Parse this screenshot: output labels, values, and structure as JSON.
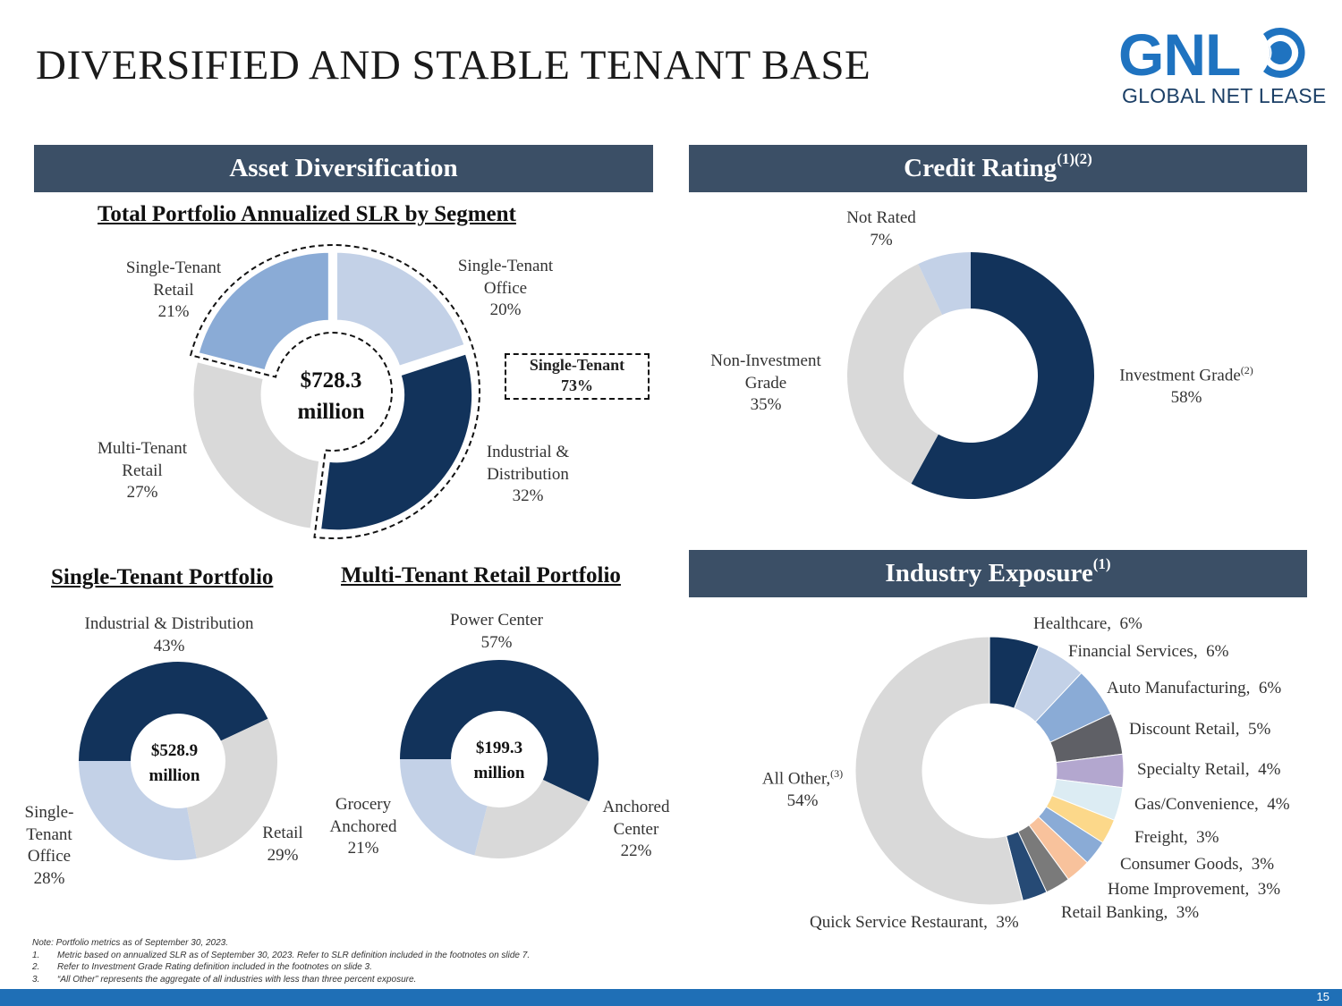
{
  "title": "DIVERSIFIED AND STABLE TENANT BASE",
  "logo": {
    "main": "GNL",
    "sub": "GLOBAL NET LEASE"
  },
  "banners": {
    "asset": "Asset Diversification",
    "credit": "Credit Rating",
    "credit_sup": "(1)(2)",
    "industry": "Industry Exposure",
    "industry_sup": "(1)"
  },
  "subheads": {
    "total": "Total Portfolio Annualized SLR by Segment",
    "single": "Single-Tenant Portfolio",
    "multi": "Multi-Tenant Retail Portfolio"
  },
  "colors": {
    "navy": "#12335b",
    "light_blue": "#c3d1e7",
    "mid_blue": "#8aabd6",
    "gray": "#d9d9d9",
    "banner": "#3b4f66",
    "accent": "#1f73c0"
  },
  "chart_data": [
    {
      "id": "total",
      "type": "pie",
      "title": "Total Portfolio Annualized SLR by Segment",
      "center": [
        "$728.3",
        "million"
      ],
      "callout": [
        "Single-Tenant",
        "73%"
      ],
      "slices": [
        {
          "label": [
            "Single-Tenant",
            "Office"
          ],
          "pct": 20,
          "pct_label": "20%",
          "color": "#c3d1e7"
        },
        {
          "label": [
            "Industrial &",
            "Distribution"
          ],
          "pct": 32,
          "pct_label": "32%",
          "color": "#12335b"
        },
        {
          "label": [
            "Multi-Tenant",
            "Retail"
          ],
          "pct": 27,
          "pct_label": "27%",
          "color": "#d9d9d9"
        },
        {
          "label": [
            "Single-Tenant",
            "Retail"
          ],
          "pct": 21,
          "pct_label": "21%",
          "color": "#8aabd6"
        }
      ]
    },
    {
      "id": "credit",
      "type": "pie",
      "title": "Credit Rating",
      "slices": [
        {
          "label": [
            "Investment Grade"
          ],
          "sup": "(2)",
          "pct": 58,
          "pct_label": "58%",
          "color": "#12335b"
        },
        {
          "label": [
            "Non-Investment",
            "Grade"
          ],
          "pct": 35,
          "pct_label": "35%",
          "color": "#d9d9d9"
        },
        {
          "label": [
            "Not Rated"
          ],
          "pct": 7,
          "pct_label": "7%",
          "color": "#c3d1e7"
        }
      ]
    },
    {
      "id": "single",
      "type": "pie",
      "title": "Single-Tenant Portfolio",
      "center": [
        "$528.9",
        "million"
      ],
      "slices": [
        {
          "label": [
            "Industrial & Distribution"
          ],
          "pct": 43,
          "pct_label": "43%",
          "color": "#12335b"
        },
        {
          "label": [
            "Retail"
          ],
          "pct": 29,
          "pct_label": "29%",
          "color": "#d9d9d9"
        },
        {
          "label": [
            "Single-",
            "Tenant",
            "Office"
          ],
          "pct": 28,
          "pct_label": "28%",
          "color": "#c3d1e7"
        }
      ]
    },
    {
      "id": "multi",
      "type": "pie",
      "title": "Multi-Tenant Retail Portfolio",
      "center": [
        "$199.3",
        "million"
      ],
      "slices": [
        {
          "label": [
            "Power Center"
          ],
          "pct": 57,
          "pct_label": "57%",
          "color": "#12335b"
        },
        {
          "label": [
            "Anchored",
            "Center"
          ],
          "pct": 22,
          "pct_label": "22%",
          "color": "#d9d9d9"
        },
        {
          "label": [
            "Grocery",
            "Anchored"
          ],
          "pct": 21,
          "pct_label": "21%",
          "color": "#c3d1e7"
        }
      ]
    },
    {
      "id": "industry",
      "type": "pie",
      "title": "Industry Exposure",
      "slices": [
        {
          "label": "Healthcare,",
          "pct": 6,
          "pct_label": "6%",
          "color": "#12335b"
        },
        {
          "label": "Financial Services,",
          "pct": 6,
          "pct_label": "6%",
          "color": "#c3d1e7"
        },
        {
          "label": "Auto Manufacturing,",
          "pct": 6,
          "pct_label": "6%",
          "color": "#8aabd6"
        },
        {
          "label": "Discount Retail,",
          "pct": 5,
          "pct_label": "5%",
          "color": "#5f6066"
        },
        {
          "label": "Specialty Retail,",
          "pct": 4,
          "pct_label": "4%",
          "color": "#b3a7cf"
        },
        {
          "label": "Gas/Convenience,",
          "pct": 4,
          "pct_label": "4%",
          "color": "#dcecf3"
        },
        {
          "label": "Freight,",
          "pct": 3,
          "pct_label": "3%",
          "color": "#fcd88a"
        },
        {
          "label": "Consumer Goods,",
          "pct": 3,
          "pct_label": "3%",
          "color": "#8aabd6"
        },
        {
          "label": "Home Improvement,",
          "pct": 3,
          "pct_label": "3%",
          "color": "#f8c29c"
        },
        {
          "label": "Retail Banking,",
          "pct": 3,
          "pct_label": "3%",
          "color": "#7a7a7a"
        },
        {
          "label": "Quick Service Restaurant,",
          "pct": 3,
          "pct_label": "3%",
          "color": "#264a75"
        },
        {
          "label": "All Other,",
          "sup": "(3)",
          "pct": 54,
          "pct_label": "54%",
          "color": "#d9d9d9"
        }
      ]
    }
  ],
  "notes": {
    "note": "Note: Portfolio metrics as of September 30, 2023.",
    "items": [
      {
        "num": "1.",
        "text": "Metric based on annualized SLR as of September 30, 2023. Refer to SLR definition included in the footnotes on slide 7."
      },
      {
        "num": "2.",
        "text": "Refer to Investment Grade Rating definition included in the footnotes on slide 3."
      },
      {
        "num": "3.",
        "text": "“All Other” represents the aggregate of all industries with less than three percent exposure."
      }
    ]
  },
  "page_number": "15"
}
